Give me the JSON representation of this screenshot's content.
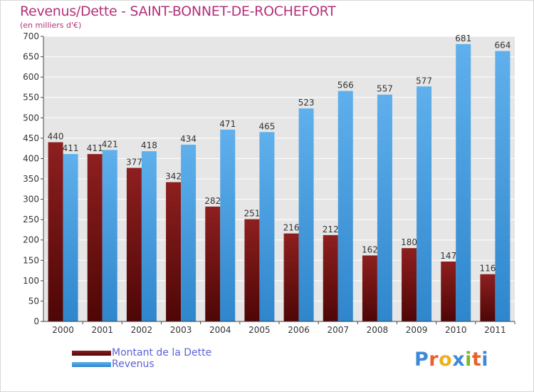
{
  "chart_data": {
    "type": "bar",
    "title": "Revenus/Dette - SAINT-BONNET-DE-ROCHEFORT",
    "subtitle": "(en milliers d'€)",
    "categories": [
      "2000",
      "2001",
      "2002",
      "2003",
      "2004",
      "2005",
      "2006",
      "2007",
      "2008",
      "2009",
      "2010",
      "2011"
    ],
    "series": [
      {
        "name": "Montant de la Dette",
        "color": "#7a1414",
        "values": [
          440,
          411,
          377,
          342,
          282,
          251,
          216,
          212,
          162,
          180,
          147,
          116
        ]
      },
      {
        "name": "Revenus",
        "color": "#3d97dd",
        "values": [
          411,
          421,
          418,
          434,
          471,
          465,
          523,
          566,
          557,
          577,
          681,
          664
        ]
      }
    ],
    "ylim": [
      0,
      700
    ],
    "yticks": [
      0,
      50,
      100,
      150,
      200,
      250,
      300,
      350,
      400,
      450,
      500,
      550,
      600,
      650,
      700
    ],
    "grid": true,
    "legend": "bottom-left"
  },
  "logo": {
    "text": "Proxiti",
    "letters": [
      "P",
      "r",
      "o",
      "x",
      "i",
      "t",
      "i"
    ],
    "colors": [
      "#3f8ad6",
      "#e8612c",
      "#f0b01c",
      "#3f8ad6",
      "#7cb82f",
      "#e8612c",
      "#3f8ad6"
    ]
  },
  "colors": {
    "background": "#e6e6e6",
    "grid": "#ffffff",
    "axis": "#444444"
  }
}
